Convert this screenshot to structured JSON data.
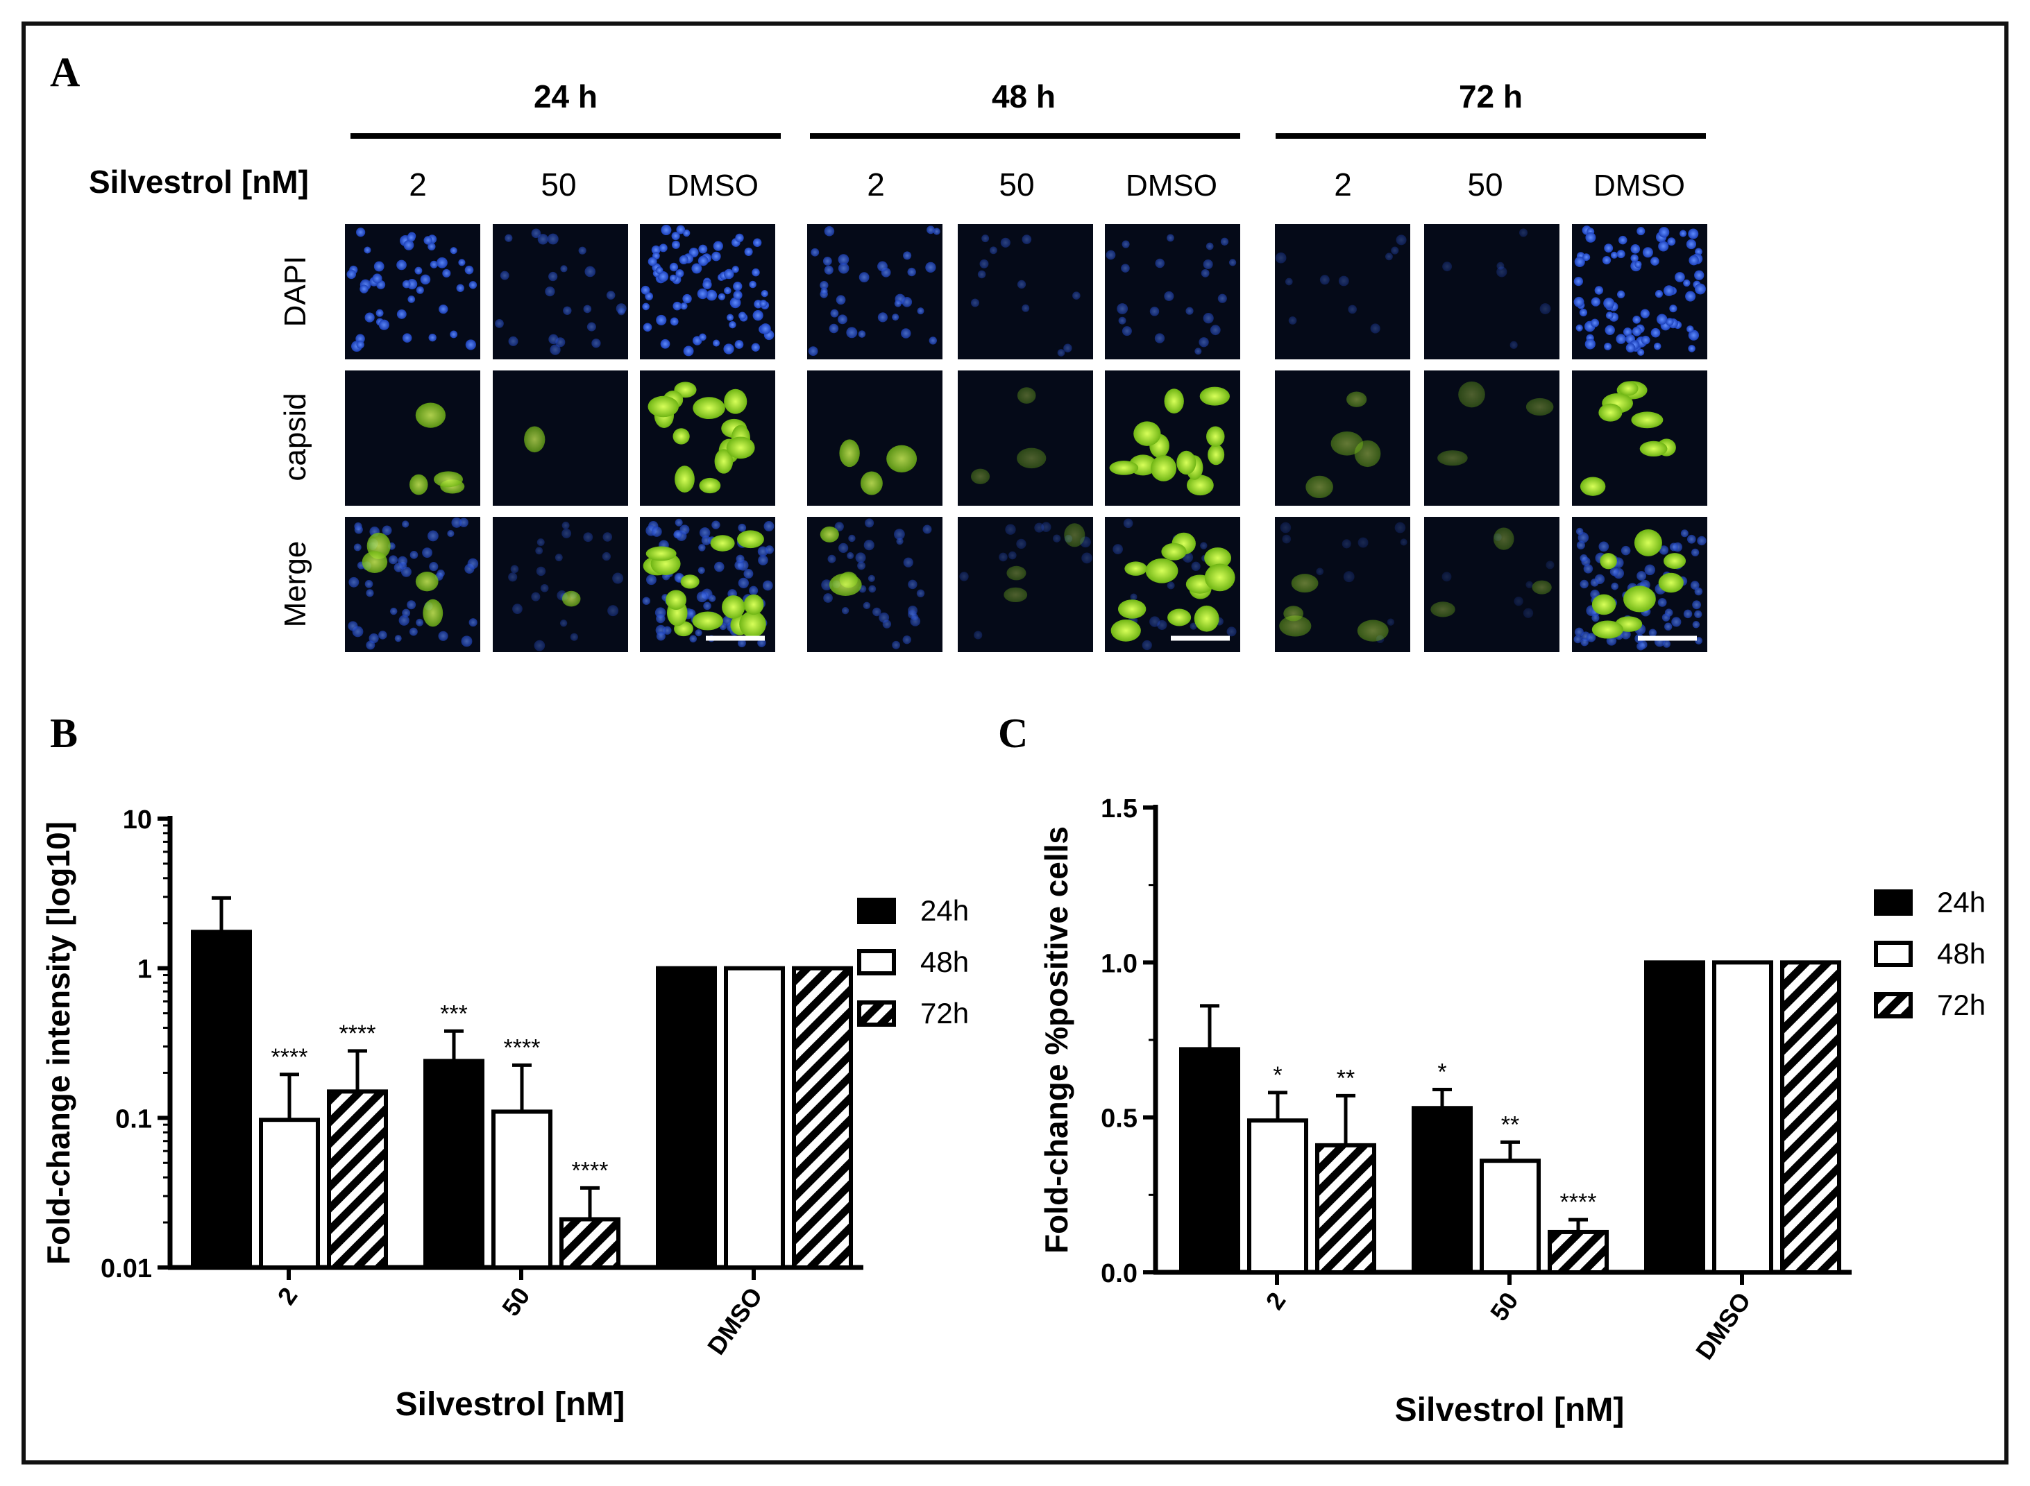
{
  "panel_a": {
    "letter": "A",
    "condition_label": "Silvestrol [nM]",
    "time_groups": [
      {
        "label": "24 h",
        "concentrations": [
          "2",
          "50",
          "DMSO"
        ]
      },
      {
        "label": "48 h",
        "concentrations": [
          "2",
          "50",
          "DMSO"
        ]
      },
      {
        "label": "72 h",
        "concentrations": [
          "2",
          "50",
          "DMSO"
        ]
      }
    ],
    "row_labels": [
      "DAPI",
      "capsid",
      "Merge"
    ],
    "colors": {
      "dapi": "#1f4fd6",
      "capsid": "#8cd61c",
      "background": "#050a18"
    }
  },
  "chart_data": [
    {
      "panel": "B",
      "type": "bar",
      "yscale": "log",
      "ylabel": "Fold-change intensity [log10]",
      "xlabel": "Silvestrol [nM]",
      "ylim": [
        0.01,
        10
      ],
      "yticks": [
        "10",
        "1",
        "0.1",
        "0.01"
      ],
      "ytick_values": [
        10,
        1,
        0.1,
        0.01
      ],
      "categories": [
        "2",
        "50",
        "DMSO"
      ],
      "legend": "right",
      "series": [
        {
          "name": "24h",
          "style": "black",
          "values": [
            1.75,
            0.24,
            1.0
          ],
          "errors_upper": [
            2.95,
            0.38,
            null
          ],
          "significance": [
            "",
            "***",
            ""
          ]
        },
        {
          "name": "48h",
          "style": "white",
          "values": [
            0.097,
            0.11,
            1.0
          ],
          "errors_upper": [
            0.195,
            0.225,
            null
          ],
          "significance": [
            "****",
            "****",
            ""
          ]
        },
        {
          "name": "72h",
          "style": "hatched",
          "values": [
            0.15,
            0.021,
            1.0
          ],
          "errors_upper": [
            0.28,
            0.034,
            null
          ],
          "significance": [
            "****",
            "****",
            ""
          ]
        }
      ]
    },
    {
      "panel": "C",
      "type": "bar",
      "yscale": "linear",
      "ylabel": "Fold-change %positive cells",
      "xlabel": "Silvestrol [nM]",
      "ylim": [
        0,
        1.5
      ],
      "yticks": [
        "1.5",
        "1.0",
        "0.5",
        "0.0"
      ],
      "ytick_values": [
        1.5,
        1.0,
        0.5,
        0.0
      ],
      "categories": [
        "2",
        "50",
        "DMSO"
      ],
      "legend": "right",
      "series": [
        {
          "name": "24h",
          "style": "black",
          "values": [
            0.72,
            0.53,
            1.0
          ],
          "errors_upper": [
            0.86,
            0.59,
            null
          ],
          "significance": [
            "",
            "*",
            ""
          ]
        },
        {
          "name": "48h",
          "style": "white",
          "values": [
            0.49,
            0.36,
            1.0
          ],
          "errors_upper": [
            0.58,
            0.42,
            null
          ],
          "significance": [
            "*",
            "**",
            ""
          ]
        },
        {
          "name": "72h",
          "style": "hatched",
          "values": [
            0.41,
            0.13,
            1.0
          ],
          "errors_upper": [
            0.57,
            0.17,
            null
          ],
          "significance": [
            "**",
            "****",
            ""
          ]
        }
      ]
    }
  ]
}
